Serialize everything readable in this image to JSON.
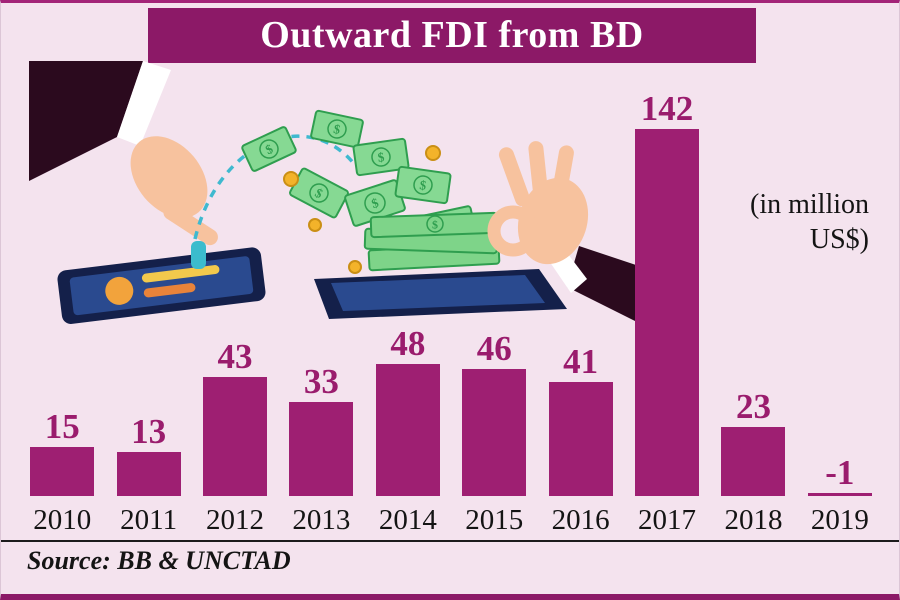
{
  "chart_data": {
    "type": "bar",
    "title": "Outward FDI from BD",
    "categories": [
      "2010",
      "2011",
      "2012",
      "2013",
      "2014",
      "2015",
      "2016",
      "2017",
      "2018",
      "2019"
    ],
    "values": [
      15,
      13,
      43,
      33,
      48,
      46,
      41,
      142,
      23,
      -1
    ],
    "units_label": "(in million\nUS$)",
    "units": "million US$",
    "source": "Source: BB & UNCTAD",
    "xlabel": "",
    "ylabel": "",
    "ylim": [
      -5,
      150
    ],
    "grid": false,
    "legend_position": "none",
    "bar_color": "#9e1f72",
    "label_color": "#9a1c6d",
    "title_bg_color": "#8c1967",
    "background_color": "#f4e3ee"
  }
}
